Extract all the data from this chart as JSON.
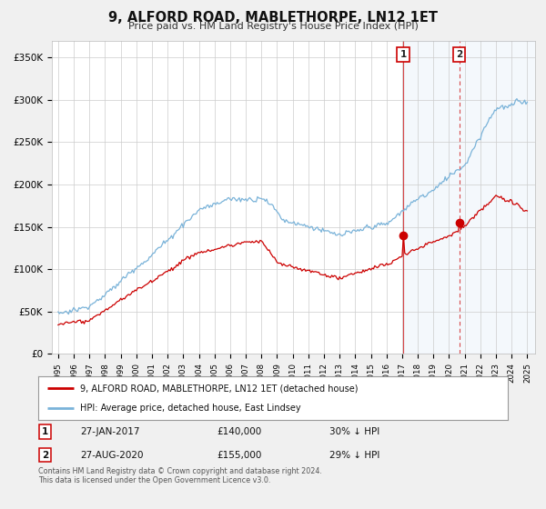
{
  "title": "9, ALFORD ROAD, MABLETHORPE, LN12 1ET",
  "subtitle": "Price paid vs. HM Land Registry's House Price Index (HPI)",
  "hpi_label": "HPI: Average price, detached house, East Lindsey",
  "property_label": "9, ALFORD ROAD, MABLETHORPE, LN12 1ET (detached house)",
  "sale1_date": "27-JAN-2017",
  "sale1_price": "£140,000",
  "sale1_pct": "30% ↓ HPI",
  "sale2_date": "27-AUG-2020",
  "sale2_price": "£155,000",
  "sale2_pct": "29% ↓ HPI",
  "hpi_color": "#7ab3d9",
  "property_color": "#cc0000",
  "background_color": "#f0f0f0",
  "plot_bg_color": "#ffffff",
  "ylim": [
    0,
    370000
  ],
  "yticks": [
    0,
    50000,
    100000,
    150000,
    200000,
    250000,
    300000,
    350000
  ],
  "sale1_year": 2017.07,
  "sale2_year": 2020.65,
  "footer": "Contains HM Land Registry data © Crown copyright and database right 2024.\nThis data is licensed under the Open Government Licence v3.0."
}
